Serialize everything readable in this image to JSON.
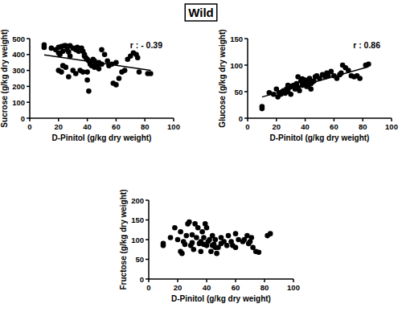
{
  "title": "Wild",
  "chart_data": [
    {
      "type": "scatter",
      "x_label": "D-Pinitol (g/kg dry weight)",
      "y_label": "Sucrose (g/kg dry weight)",
      "annotation": "r : - 0.39",
      "color": "#000000",
      "marker": "circle",
      "x": [
        10,
        10,
        15,
        18,
        20,
        20,
        21,
        22,
        23,
        24,
        25,
        26,
        27,
        28,
        28,
        30,
        32,
        33,
        34,
        36,
        37,
        38,
        38,
        39,
        40,
        41,
        42,
        42,
        43,
        44,
        45,
        46,
        47,
        40,
        40,
        41,
        20,
        22,
        23,
        25,
        27,
        30,
        32,
        35,
        37,
        45,
        48,
        50,
        52,
        54,
        55,
        57,
        58,
        60,
        60,
        62,
        64,
        66,
        68,
        70,
        72,
        74,
        75,
        76,
        82,
        84,
        48,
        50
      ],
      "values": [
        460,
        445,
        440,
        430,
        445,
        410,
        400,
        450,
        420,
        455,
        455,
        430,
        415,
        390,
        455,
        440,
        430,
        445,
        420,
        440,
        420,
        400,
        390,
        380,
        370,
        360,
        350,
        340,
        330,
        370,
        360,
        340,
        330,
        290,
        240,
        170,
        300,
        290,
        330,
        320,
        260,
        300,
        280,
        300,
        290,
        320,
        310,
        430,
        400,
        360,
        330,
        340,
        220,
        210,
        350,
        250,
        290,
        300,
        370,
        390,
        410,
        400,
        380,
        290,
        280,
        280,
        350,
        340
      ],
      "fit": {
        "x": [
          10,
          84
        ],
        "y": [
          398,
          300
        ]
      },
      "xlim": [
        0,
        100
      ],
      "xticks": [
        0,
        20,
        40,
        60,
        80,
        100
      ],
      "ylim": [
        0,
        500
      ],
      "yticks": [
        0,
        100,
        200,
        300,
        400,
        500
      ],
      "grid": false
    },
    {
      "type": "scatter",
      "x_label": "D-Pinitol (g/kg dry weight)",
      "y_label": "Glucose (g/kg dry weight)",
      "annotation": "r : 0.86",
      "color": "#000000",
      "marker": "circle",
      "x": [
        10,
        10,
        15,
        18,
        20,
        21,
        22,
        23,
        24,
        25,
        26,
        27,
        28,
        29,
        30,
        30,
        32,
        33,
        34,
        35,
        36,
        37,
        38,
        39,
        40,
        40,
        41,
        42,
        43,
        44,
        45,
        46,
        47,
        48,
        50,
        52,
        54,
        55,
        56,
        58,
        60,
        62,
        64,
        65,
        66,
        68,
        70,
        72,
        74,
        76,
        78,
        82,
        84,
        35,
        38,
        42,
        44,
        28
      ],
      "values": [
        22,
        18,
        48,
        45,
        55,
        40,
        48,
        45,
        50,
        52,
        47,
        55,
        50,
        58,
        60,
        45,
        62,
        55,
        65,
        58,
        52,
        70,
        62,
        68,
        72,
        65,
        60,
        70,
        75,
        65,
        68,
        70,
        78,
        80,
        75,
        82,
        78,
        85,
        80,
        88,
        80,
        75,
        82,
        85,
        100,
        95,
        90,
        80,
        78,
        80,
        75,
        100,
        102,
        78,
        74,
        60,
        55,
        62
      ],
      "fit": {
        "x": [
          10,
          84
        ],
        "y": [
          40,
          97
        ]
      },
      "xlim": [
        0,
        100
      ],
      "xticks": [
        0,
        20,
        40,
        60,
        80,
        100
      ],
      "ylim": [
        0,
        150
      ],
      "yticks": [
        0,
        50,
        100,
        150
      ],
      "grid": false
    },
    {
      "type": "scatter",
      "x_label": "D-Pinitol (g/kg dry weight)",
      "y_label": "Fructose (g/kg dry weight)",
      "color": "#000000",
      "marker": "circle",
      "x": [
        10,
        10,
        15,
        18,
        20,
        22,
        22,
        23,
        24,
        25,
        26,
        27,
        28,
        29,
        30,
        30,
        31,
        32,
        33,
        34,
        35,
        36,
        37,
        38,
        39,
        40,
        40,
        41,
        42,
        43,
        44,
        45,
        46,
        47,
        48,
        50,
        52,
        54,
        55,
        57,
        58,
        60,
        60,
        62,
        65,
        66,
        68,
        69,
        70,
        71,
        72,
        74,
        76,
        82,
        84,
        36,
        38,
        44,
        46,
        50
      ],
      "values": [
        90,
        85,
        105,
        130,
        100,
        70,
        120,
        65,
        95,
        88,
        110,
        140,
        145,
        85,
        112,
        92,
        75,
        140,
        105,
        130,
        90,
        70,
        120,
        105,
        140,
        130,
        85,
        95,
        100,
        70,
        110,
        88,
        100,
        65,
        80,
        105,
        95,
        85,
        110,
        95,
        85,
        80,
        115,
        100,
        95,
        100,
        110,
        90,
        95,
        105,
        80,
        70,
        68,
        110,
        115,
        95,
        88,
        85,
        80,
        90
      ],
      "xlim": [
        0,
        100
      ],
      "xticks": [
        0,
        20,
        40,
        60,
        80,
        100
      ],
      "ylim": [
        0,
        200
      ],
      "yticks": [
        0,
        50,
        100,
        150,
        200
      ],
      "grid": false
    }
  ]
}
